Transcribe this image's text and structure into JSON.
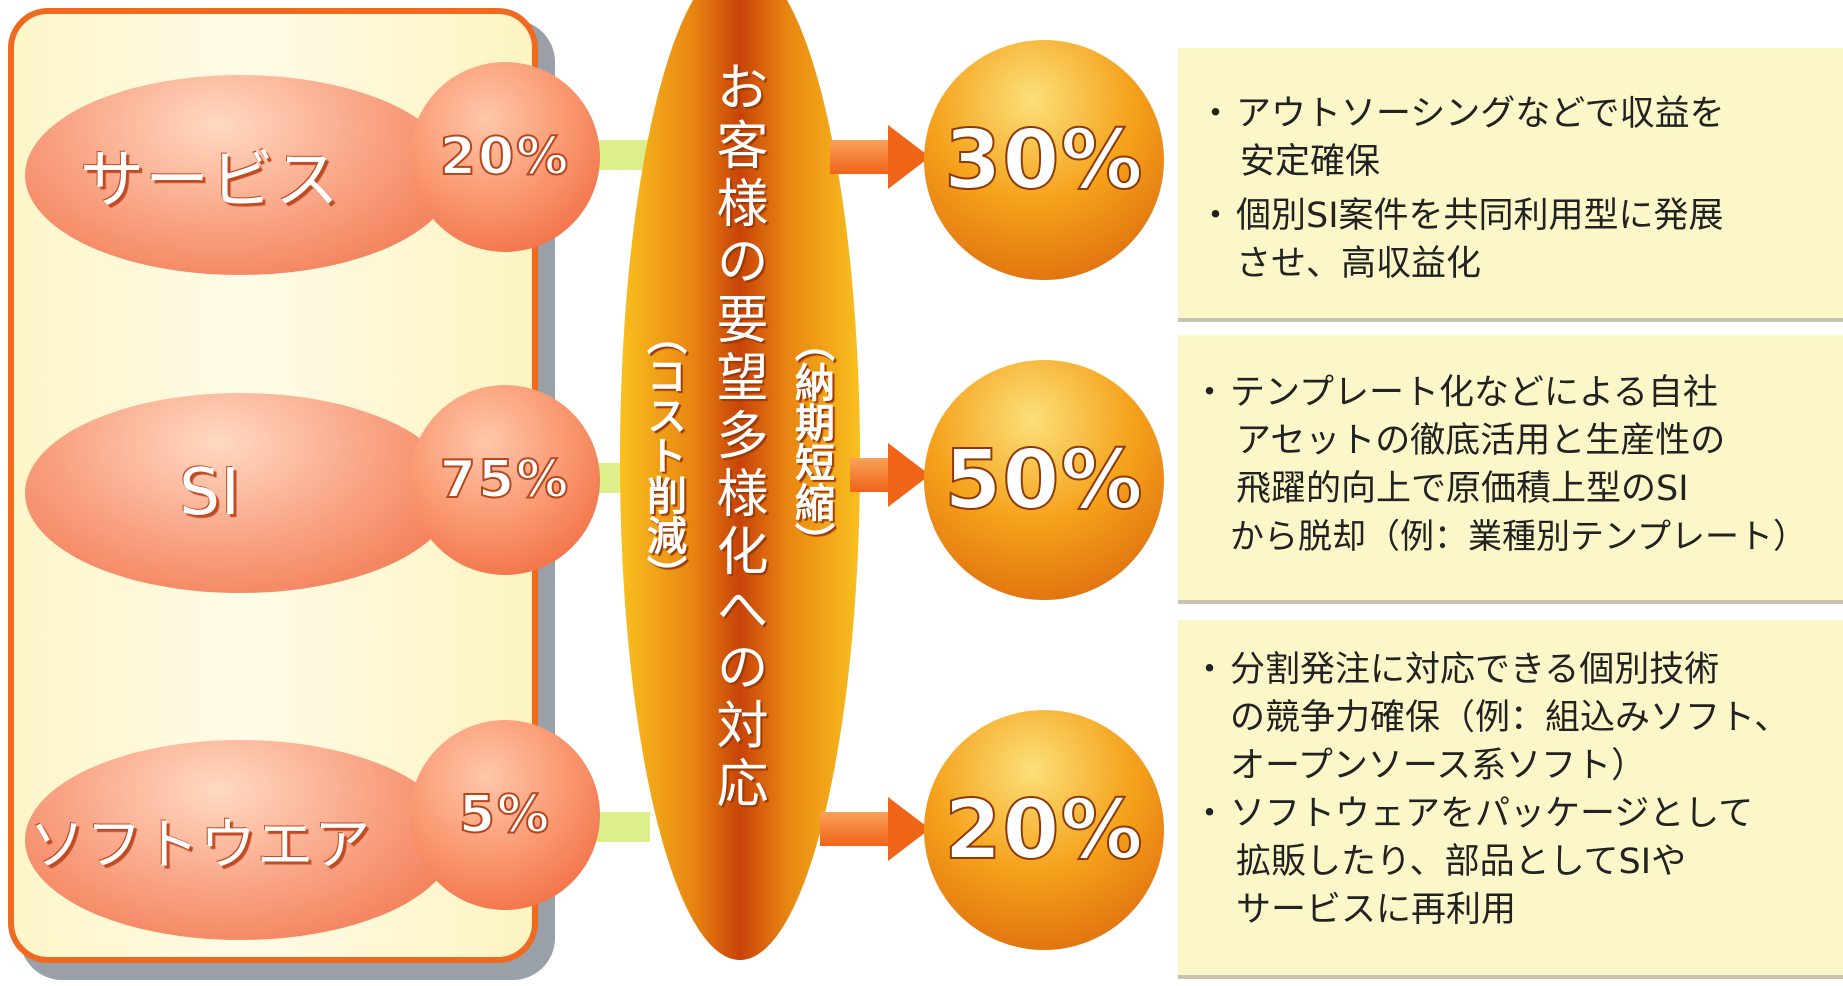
{
  "center": {
    "main": "お客様の要望多様化への対応",
    "sub_right": "（納期短縮）",
    "sub_left": "（コスト削減）"
  },
  "categories": [
    {
      "label": "サービス",
      "current": "20%",
      "target": "30%"
    },
    {
      "label": "SI",
      "current": "75%",
      "target": "50%"
    },
    {
      "label": "ソフトウエア",
      "current": "5%",
      "target": "20%"
    }
  ],
  "boxes": [
    {
      "bullets": [
        {
          "marker": "・",
          "lines": [
            "アウトソーシングなどで収益を",
            "安定確保"
          ]
        },
        {
          "marker": "・",
          "lines": [
            "個別SI案件を共同利用型に発展",
            "させ、高収益化"
          ]
        }
      ]
    },
    {
      "bullets": [
        {
          "marker": "・",
          "lines": [
            "テンプレート化などによる自社",
            "アセットの徹底活用と生産性の",
            "飛躍的向上で原価積上型のSI",
            "から脱却（例：業種別テンプレート）"
          ]
        }
      ]
    },
    {
      "bullets": [
        {
          "marker": "・",
          "lines": [
            "分割発注に対応できる個別技術",
            "の競争力確保（例：組込みソフト、",
            "オープンソース系ソフト）"
          ]
        },
        {
          "marker": "・",
          "lines": [
            "ソフトウェアをパッケージとして",
            "拡販したり、部品としてSIや",
            "サービスに再利用"
          ]
        }
      ]
    }
  ]
}
